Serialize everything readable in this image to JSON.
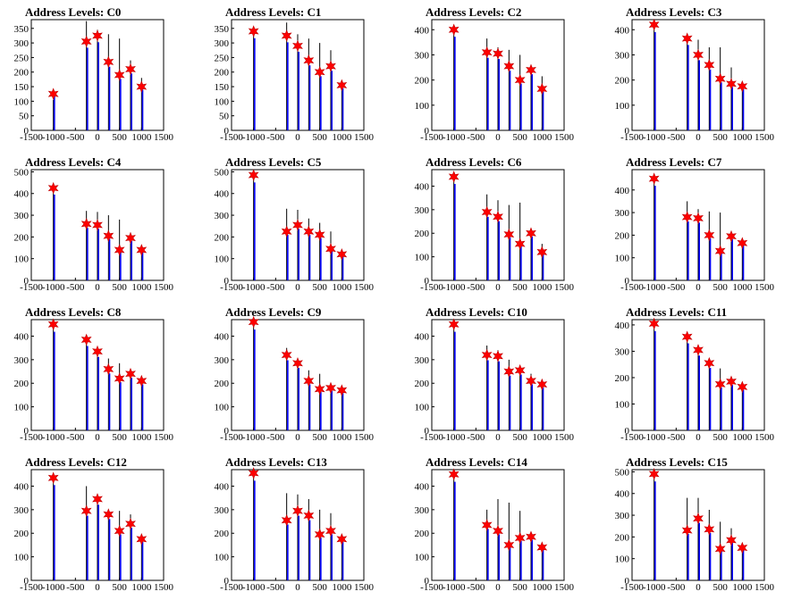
{
  "figure": {
    "marker_color": "#ff0000",
    "bar_color": "#0000ff",
    "spike_color": "#000000"
  },
  "chart_data": [
    {
      "type": "bar",
      "title": "Address Levels: C0",
      "xlim": [
        -1500,
        1500
      ],
      "ylim": [
        0,
        380
      ],
      "yticks": [
        0,
        50,
        100,
        150,
        200,
        250,
        300,
        350
      ],
      "xticks": [
        -1500,
        -1000,
        -500,
        0,
        500,
        1000,
        1500
      ],
      "peaks": [
        {
          "x": -1000,
          "value": 125,
          "spike": 105
        },
        {
          "x": -250,
          "value": 305,
          "spike": 375
        },
        {
          "x": 0,
          "value": 325,
          "spike": 345
        },
        {
          "x": 250,
          "value": 235,
          "spike": 330
        },
        {
          "x": 500,
          "value": 190,
          "spike": 315
        },
        {
          "x": 750,
          "value": 210,
          "spike": 240
        },
        {
          "x": 1000,
          "value": 150,
          "spike": 180
        }
      ]
    },
    {
      "type": "bar",
      "title": "Address Levels: C1",
      "xlim": [
        -1500,
        1500
      ],
      "ylim": [
        0,
        380
      ],
      "yticks": [
        0,
        50,
        100,
        150,
        200,
        250,
        300,
        350
      ],
      "xticks": [
        -1500,
        -1000,
        -500,
        0,
        500,
        1000,
        1500
      ],
      "peaks": [
        {
          "x": -1000,
          "value": 340,
          "spike": 340
        },
        {
          "x": -250,
          "value": 325,
          "spike": 370
        },
        {
          "x": 0,
          "value": 290,
          "spike": 330
        },
        {
          "x": 250,
          "value": 240,
          "spike": 315
        },
        {
          "x": 500,
          "value": 200,
          "spike": 300
        },
        {
          "x": 750,
          "value": 220,
          "spike": 275
        },
        {
          "x": 1000,
          "value": 155,
          "spike": 160
        }
      ]
    },
    {
      "type": "bar",
      "title": "Address Levels: C2",
      "xlim": [
        -1500,
        1500
      ],
      "ylim": [
        0,
        440
      ],
      "yticks": [
        0,
        100,
        200,
        300,
        400
      ],
      "xticks": [
        -1500,
        -1000,
        -500,
        0,
        500,
        1000,
        1500
      ],
      "peaks": [
        {
          "x": -1000,
          "value": 400,
          "spike": 400
        },
        {
          "x": -250,
          "value": 310,
          "spike": 365
        },
        {
          "x": 0,
          "value": 305,
          "spike": 330
        },
        {
          "x": 250,
          "value": 255,
          "spike": 320
        },
        {
          "x": 500,
          "value": 200,
          "spike": 300
        },
        {
          "x": 750,
          "value": 240,
          "spike": 255
        },
        {
          "x": 1000,
          "value": 165,
          "spike": 215
        }
      ]
    },
    {
      "type": "bar",
      "title": "Address Levels: C3",
      "xlim": [
        -1500,
        1500
      ],
      "ylim": [
        0,
        440
      ],
      "yticks": [
        0,
        100,
        200,
        300,
        400
      ],
      "xticks": [
        -1500,
        -1000,
        -500,
        0,
        500,
        1000,
        1500
      ],
      "peaks": [
        {
          "x": -1000,
          "value": 420,
          "spike": 420
        },
        {
          "x": -250,
          "value": 365,
          "spike": 375
        },
        {
          "x": 0,
          "value": 300,
          "spike": 360
        },
        {
          "x": 250,
          "value": 260,
          "spike": 330
        },
        {
          "x": 500,
          "value": 205,
          "spike": 330
        },
        {
          "x": 750,
          "value": 185,
          "spike": 250
        },
        {
          "x": 1000,
          "value": 175,
          "spike": 180
        }
      ]
    },
    {
      "type": "bar",
      "title": "Address Levels: C4",
      "xlim": [
        -1500,
        1500
      ],
      "ylim": [
        0,
        510
      ],
      "yticks": [
        0,
        100,
        200,
        300,
        400,
        500
      ],
      "xticks": [
        -1500,
        -1000,
        -500,
        0,
        500,
        1000,
        1500
      ],
      "peaks": [
        {
          "x": -1000,
          "value": 425,
          "spike": 430
        },
        {
          "x": -250,
          "value": 260,
          "spike": 320
        },
        {
          "x": 0,
          "value": 255,
          "spike": 315
        },
        {
          "x": 250,
          "value": 205,
          "spike": 300
        },
        {
          "x": 500,
          "value": 140,
          "spike": 280
        },
        {
          "x": 750,
          "value": 195,
          "spike": 220
        },
        {
          "x": 1000,
          "value": 140,
          "spike": 145
        }
      ]
    },
    {
      "type": "bar",
      "title": "Address Levels: C5",
      "xlim": [
        -1500,
        1500
      ],
      "ylim": [
        0,
        510
      ],
      "yticks": [
        0,
        100,
        200,
        300,
        400,
        500
      ],
      "xticks": [
        -1500,
        -1000,
        -500,
        0,
        500,
        1000,
        1500
      ],
      "peaks": [
        {
          "x": -1000,
          "value": 485,
          "spike": 490
        },
        {
          "x": -250,
          "value": 225,
          "spike": 330
        },
        {
          "x": 0,
          "value": 255,
          "spike": 325
        },
        {
          "x": 250,
          "value": 225,
          "spike": 285
        },
        {
          "x": 500,
          "value": 210,
          "spike": 265
        },
        {
          "x": 750,
          "value": 145,
          "spike": 225
        },
        {
          "x": 1000,
          "value": 120,
          "spike": 125
        }
      ]
    },
    {
      "type": "bar",
      "title": "Address Levels: C6",
      "xlim": [
        -1500,
        1500
      ],
      "ylim": [
        0,
        470
      ],
      "yticks": [
        0,
        100,
        200,
        300,
        400
      ],
      "xticks": [
        -1500,
        -1000,
        -500,
        0,
        500,
        1000,
        1500
      ],
      "peaks": [
        {
          "x": -1000,
          "value": 440,
          "spike": 445
        },
        {
          "x": -250,
          "value": 290,
          "spike": 365
        },
        {
          "x": 0,
          "value": 270,
          "spike": 340
        },
        {
          "x": 250,
          "value": 195,
          "spike": 320
        },
        {
          "x": 500,
          "value": 155,
          "spike": 330
        },
        {
          "x": 750,
          "value": 200,
          "spike": 210
        },
        {
          "x": 1000,
          "value": 120,
          "spike": 155
        }
      ]
    },
    {
      "type": "bar",
      "title": "Address Levels: C7",
      "xlim": [
        -1500,
        1500
      ],
      "ylim": [
        0,
        490
      ],
      "yticks": [
        0,
        100,
        200,
        300,
        400
      ],
      "xticks": [
        -1500,
        -1000,
        -500,
        0,
        500,
        1000,
        1500
      ],
      "peaks": [
        {
          "x": -1000,
          "value": 450,
          "spike": 455
        },
        {
          "x": -250,
          "value": 280,
          "spike": 350
        },
        {
          "x": 0,
          "value": 275,
          "spike": 315
        },
        {
          "x": 250,
          "value": 200,
          "spike": 305
        },
        {
          "x": 500,
          "value": 130,
          "spike": 300
        },
        {
          "x": 750,
          "value": 195,
          "spike": 200
        },
        {
          "x": 1000,
          "value": 165,
          "spike": 185
        }
      ]
    },
    {
      "type": "bar",
      "title": "Address Levels: C8",
      "xlim": [
        -1500,
        1500
      ],
      "ylim": [
        0,
        470
      ],
      "yticks": [
        0,
        100,
        200,
        300,
        400
      ],
      "xticks": [
        -1500,
        -1000,
        -500,
        0,
        500,
        1000,
        1500
      ],
      "peaks": [
        {
          "x": -1000,
          "value": 450,
          "spike": 455
        },
        {
          "x": -250,
          "value": 385,
          "spike": 390
        },
        {
          "x": 0,
          "value": 335,
          "spike": 345
        },
        {
          "x": 250,
          "value": 260,
          "spike": 305
        },
        {
          "x": 500,
          "value": 220,
          "spike": 285
        },
        {
          "x": 750,
          "value": 240,
          "spike": 250
        },
        {
          "x": 1000,
          "value": 210,
          "spike": 215
        }
      ]
    },
    {
      "type": "bar",
      "title": "Address Levels: C9",
      "xlim": [
        -1500,
        1500
      ],
      "ylim": [
        0,
        470
      ],
      "yticks": [
        0,
        100,
        200,
        300,
        400
      ],
      "xticks": [
        -1500,
        -1000,
        -500,
        0,
        500,
        1000,
        1500
      ],
      "peaks": [
        {
          "x": -1000,
          "value": 460,
          "spike": 460
        },
        {
          "x": -250,
          "value": 320,
          "spike": 350
        },
        {
          "x": 0,
          "value": 285,
          "spike": 300
        },
        {
          "x": 250,
          "value": 210,
          "spike": 255
        },
        {
          "x": 500,
          "value": 175,
          "spike": 240
        },
        {
          "x": 750,
          "value": 180,
          "spike": 190
        },
        {
          "x": 1000,
          "value": 170,
          "spike": 175
        }
      ]
    },
    {
      "type": "bar",
      "title": "Address Levels: C10",
      "xlim": [
        -1500,
        1500
      ],
      "ylim": [
        0,
        470
      ],
      "yticks": [
        0,
        100,
        200,
        300,
        400
      ],
      "xticks": [
        -1500,
        -1000,
        -500,
        0,
        500,
        1000,
        1500
      ],
      "peaks": [
        {
          "x": -1000,
          "value": 450,
          "spike": 455
        },
        {
          "x": -250,
          "value": 320,
          "spike": 360
        },
        {
          "x": 0,
          "value": 315,
          "spike": 340
        },
        {
          "x": 250,
          "value": 250,
          "spike": 300
        },
        {
          "x": 500,
          "value": 255,
          "spike": 270
        },
        {
          "x": 750,
          "value": 210,
          "spike": 240
        },
        {
          "x": 1000,
          "value": 195,
          "spike": 205
        }
      ]
    },
    {
      "type": "bar",
      "title": "Address Levels: C11",
      "xlim": [
        -1500,
        1500
      ],
      "ylim": [
        0,
        420
      ],
      "yticks": [
        0,
        100,
        200,
        300,
        400
      ],
      "xticks": [
        -1500,
        -1000,
        -500,
        0,
        500,
        1000,
        1500
      ],
      "peaks": [
        {
          "x": -1000,
          "value": 405,
          "spike": 410
        },
        {
          "x": -250,
          "value": 355,
          "spike": 360
        },
        {
          "x": 0,
          "value": 305,
          "spike": 310
        },
        {
          "x": 250,
          "value": 255,
          "spike": 260
        },
        {
          "x": 500,
          "value": 175,
          "spike": 235
        },
        {
          "x": 750,
          "value": 185,
          "spike": 195
        },
        {
          "x": 1000,
          "value": 165,
          "spike": 175
        }
      ]
    },
    {
      "type": "bar",
      "title": "Address Levels: C12",
      "xlim": [
        -1500,
        1500
      ],
      "ylim": [
        0,
        470
      ],
      "yticks": [
        0,
        100,
        200,
        300,
        400
      ],
      "xticks": [
        -1500,
        -1000,
        -500,
        0,
        500,
        1000,
        1500
      ],
      "peaks": [
        {
          "x": -1000,
          "value": 435,
          "spike": 440
        },
        {
          "x": -250,
          "value": 295,
          "spike": 400
        },
        {
          "x": 0,
          "value": 345,
          "spike": 365
        },
        {
          "x": 250,
          "value": 280,
          "spike": 300
        },
        {
          "x": 500,
          "value": 210,
          "spike": 295
        },
        {
          "x": 750,
          "value": 240,
          "spike": 280
        },
        {
          "x": 1000,
          "value": 175,
          "spike": 180
        }
      ]
    },
    {
      "type": "bar",
      "title": "Address Levels: C13",
      "xlim": [
        -1500,
        1500
      ],
      "ylim": [
        0,
        470
      ],
      "yticks": [
        0,
        100,
        200,
        300,
        400
      ],
      "xticks": [
        -1500,
        -1000,
        -500,
        0,
        500,
        1000,
        1500
      ],
      "peaks": [
        {
          "x": -1000,
          "value": 455,
          "spike": 460
        },
        {
          "x": -250,
          "value": 255,
          "spike": 370
        },
        {
          "x": 0,
          "value": 295,
          "spike": 365
        },
        {
          "x": 250,
          "value": 275,
          "spike": 345
        },
        {
          "x": 500,
          "value": 195,
          "spike": 300
        },
        {
          "x": 750,
          "value": 210,
          "spike": 285
        },
        {
          "x": 1000,
          "value": 175,
          "spike": 195
        }
      ]
    },
    {
      "type": "bar",
      "title": "Address Levels: C14",
      "xlim": [
        -1500,
        1500
      ],
      "ylim": [
        0,
        470
      ],
      "yticks": [
        0,
        100,
        200,
        300,
        400
      ],
      "xticks": [
        -1500,
        -1000,
        -500,
        0,
        500,
        1000,
        1500
      ],
      "peaks": [
        {
          "x": -1000,
          "value": 450,
          "spike": 455
        },
        {
          "x": -250,
          "value": 235,
          "spike": 300
        },
        {
          "x": 0,
          "value": 210,
          "spike": 345
        },
        {
          "x": 250,
          "value": 150,
          "spike": 330
        },
        {
          "x": 500,
          "value": 180,
          "spike": 295
        },
        {
          "x": 750,
          "value": 185,
          "spike": 195
        },
        {
          "x": 1000,
          "value": 140,
          "spike": 150
        }
      ]
    },
    {
      "type": "bar",
      "title": "Address Levels: C15",
      "xlim": [
        -1500,
        1500
      ],
      "ylim": [
        0,
        510
      ],
      "yticks": [
        0,
        100,
        200,
        300,
        400,
        500
      ],
      "xticks": [
        -1500,
        -1000,
        -500,
        0,
        500,
        1000,
        1500
      ],
      "peaks": [
        {
          "x": -1000,
          "value": 490,
          "spike": 490
        },
        {
          "x": -250,
          "value": 230,
          "spike": 380
        },
        {
          "x": 0,
          "value": 285,
          "spike": 380
        },
        {
          "x": 250,
          "value": 235,
          "spike": 325
        },
        {
          "x": 500,
          "value": 145,
          "spike": 270
        },
        {
          "x": 750,
          "value": 185,
          "spike": 240
        },
        {
          "x": 1000,
          "value": 150,
          "spike": 160
        }
      ]
    }
  ]
}
